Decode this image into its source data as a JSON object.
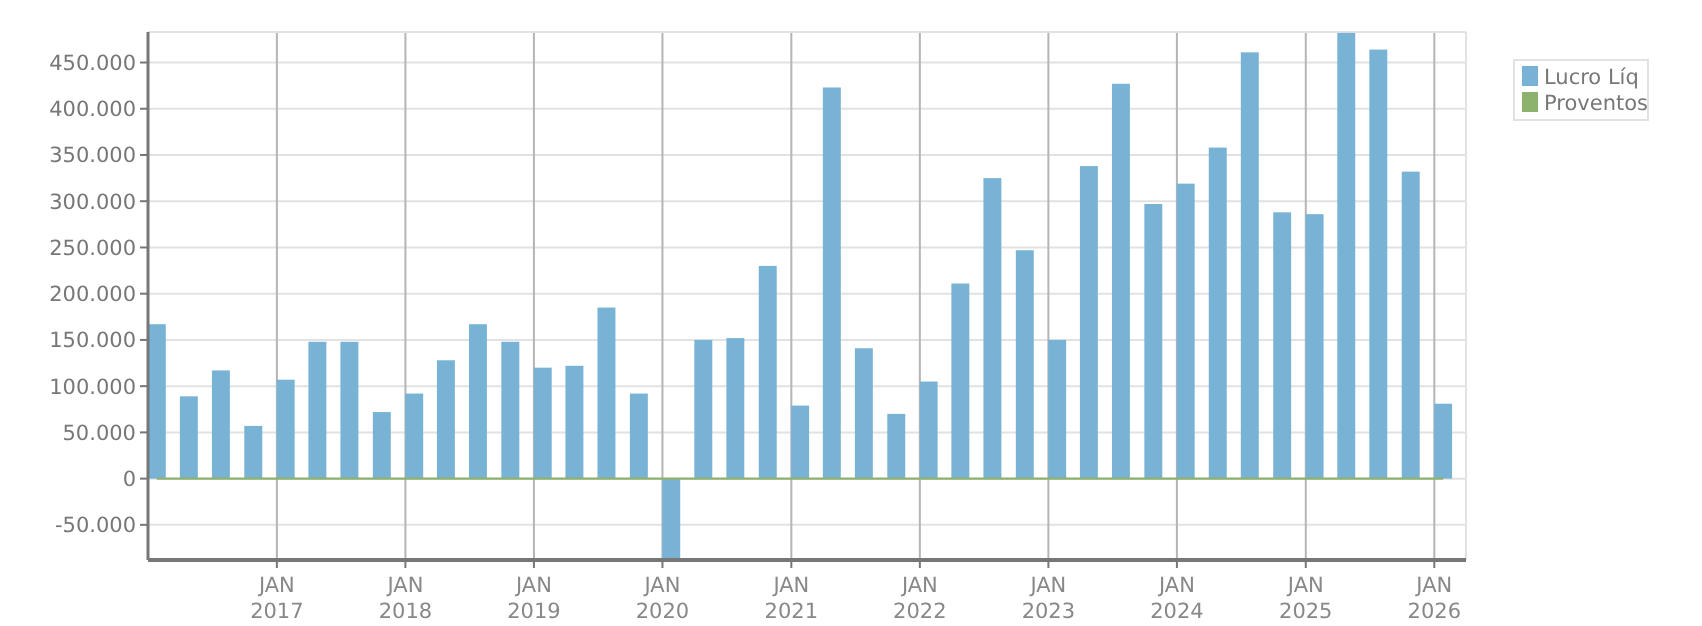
{
  "chart_data": {
    "type": "bar",
    "x": [
      "2016-01-26",
      "2016-04-26",
      "2016-07-26",
      "2016-10-26",
      "2017-01-26",
      "2017-04-26",
      "2017-07-26",
      "2017-10-26",
      "2018-01-26",
      "2018-04-26",
      "2018-07-26",
      "2018-10-26",
      "2019-01-26",
      "2019-04-26",
      "2019-07-26",
      "2019-10-26",
      "2020-01-26",
      "2020-04-26",
      "2020-07-26",
      "2020-10-26",
      "2021-01-26",
      "2021-04-26",
      "2021-07-26",
      "2021-10-26",
      "2022-01-26",
      "2022-04-26",
      "2022-07-26",
      "2022-10-26",
      "2023-01-26",
      "2023-04-26",
      "2023-07-26",
      "2023-10-26",
      "2024-01-26",
      "2024-04-26",
      "2024-07-26",
      "2024-10-26",
      "2025-01-26",
      "2025-04-26",
      "2025-07-26",
      "2025-10-26",
      "2026-01-26"
    ],
    "series": [
      {
        "name": "Lucro Líq",
        "color": "#78b3d6",
        "values": [
          167000,
          89000,
          117000,
          57000,
          107000,
          148000,
          148000,
          72000,
          92000,
          128000,
          167000,
          148000,
          120000,
          122000,
          185000,
          92000,
          -88000,
          150000,
          152000,
          230000,
          79000,
          423000,
          141000,
          70000,
          105000,
          211000,
          325000,
          247000,
          150000,
          338000,
          427000,
          297000,
          319000,
          358000,
          461000,
          288000,
          286000,
          482000,
          464000,
          332000,
          81000
        ]
      },
      {
        "name": "Proventos",
        "type": "line",
        "color": "#8db26e",
        "values": [
          0,
          0,
          0,
          0,
          0,
          0,
          0,
          0,
          0,
          0,
          0,
          0,
          0,
          0,
          0,
          0,
          0,
          0,
          0,
          0,
          0,
          0,
          0,
          0,
          0,
          0,
          0,
          0,
          0,
          0,
          0,
          0,
          0,
          0,
          0,
          0,
          0,
          0,
          0,
          0,
          0
        ]
      }
    ],
    "xlim": [
      "2016-01",
      "2026-04"
    ],
    "xticks": [
      {
        "value": "2017-01",
        "label": "JAN\n2017"
      },
      {
        "value": "2018-01",
        "label": "JAN\n2018"
      },
      {
        "value": "2019-01",
        "label": "JAN\n2019"
      },
      {
        "value": "2020-01",
        "label": "JAN\n2020"
      },
      {
        "value": "2021-01",
        "label": "JAN\n2021"
      },
      {
        "value": "2022-01",
        "label": "JAN\n2022"
      },
      {
        "value": "2023-01",
        "label": "JAN\n2023"
      },
      {
        "value": "2024-01",
        "label": "JAN\n2024"
      },
      {
        "value": "2025-01",
        "label": "JAN\n2025"
      },
      {
        "value": "2026-01",
        "label": "JAN\n2026"
      }
    ],
    "ylim": [
      -88000,
      483000
    ],
    "yticks": [
      {
        "value": -50000,
        "label": "-50.000"
      },
      {
        "value": 0,
        "label": "0"
      },
      {
        "value": 50000,
        "label": "50.000"
      },
      {
        "value": 100000,
        "label": "100.000"
      },
      {
        "value": 150000,
        "label": "150.000"
      },
      {
        "value": 200000,
        "label": "200.000"
      },
      {
        "value": 250000,
        "label": "250.000"
      },
      {
        "value": 300000,
        "label": "300.000"
      },
      {
        "value": 350000,
        "label": "350.000"
      },
      {
        "value": 400000,
        "label": "400.000"
      },
      {
        "value": 450000,
        "label": "450.000"
      }
    ],
    "grid": true,
    "legend": "top right"
  }
}
